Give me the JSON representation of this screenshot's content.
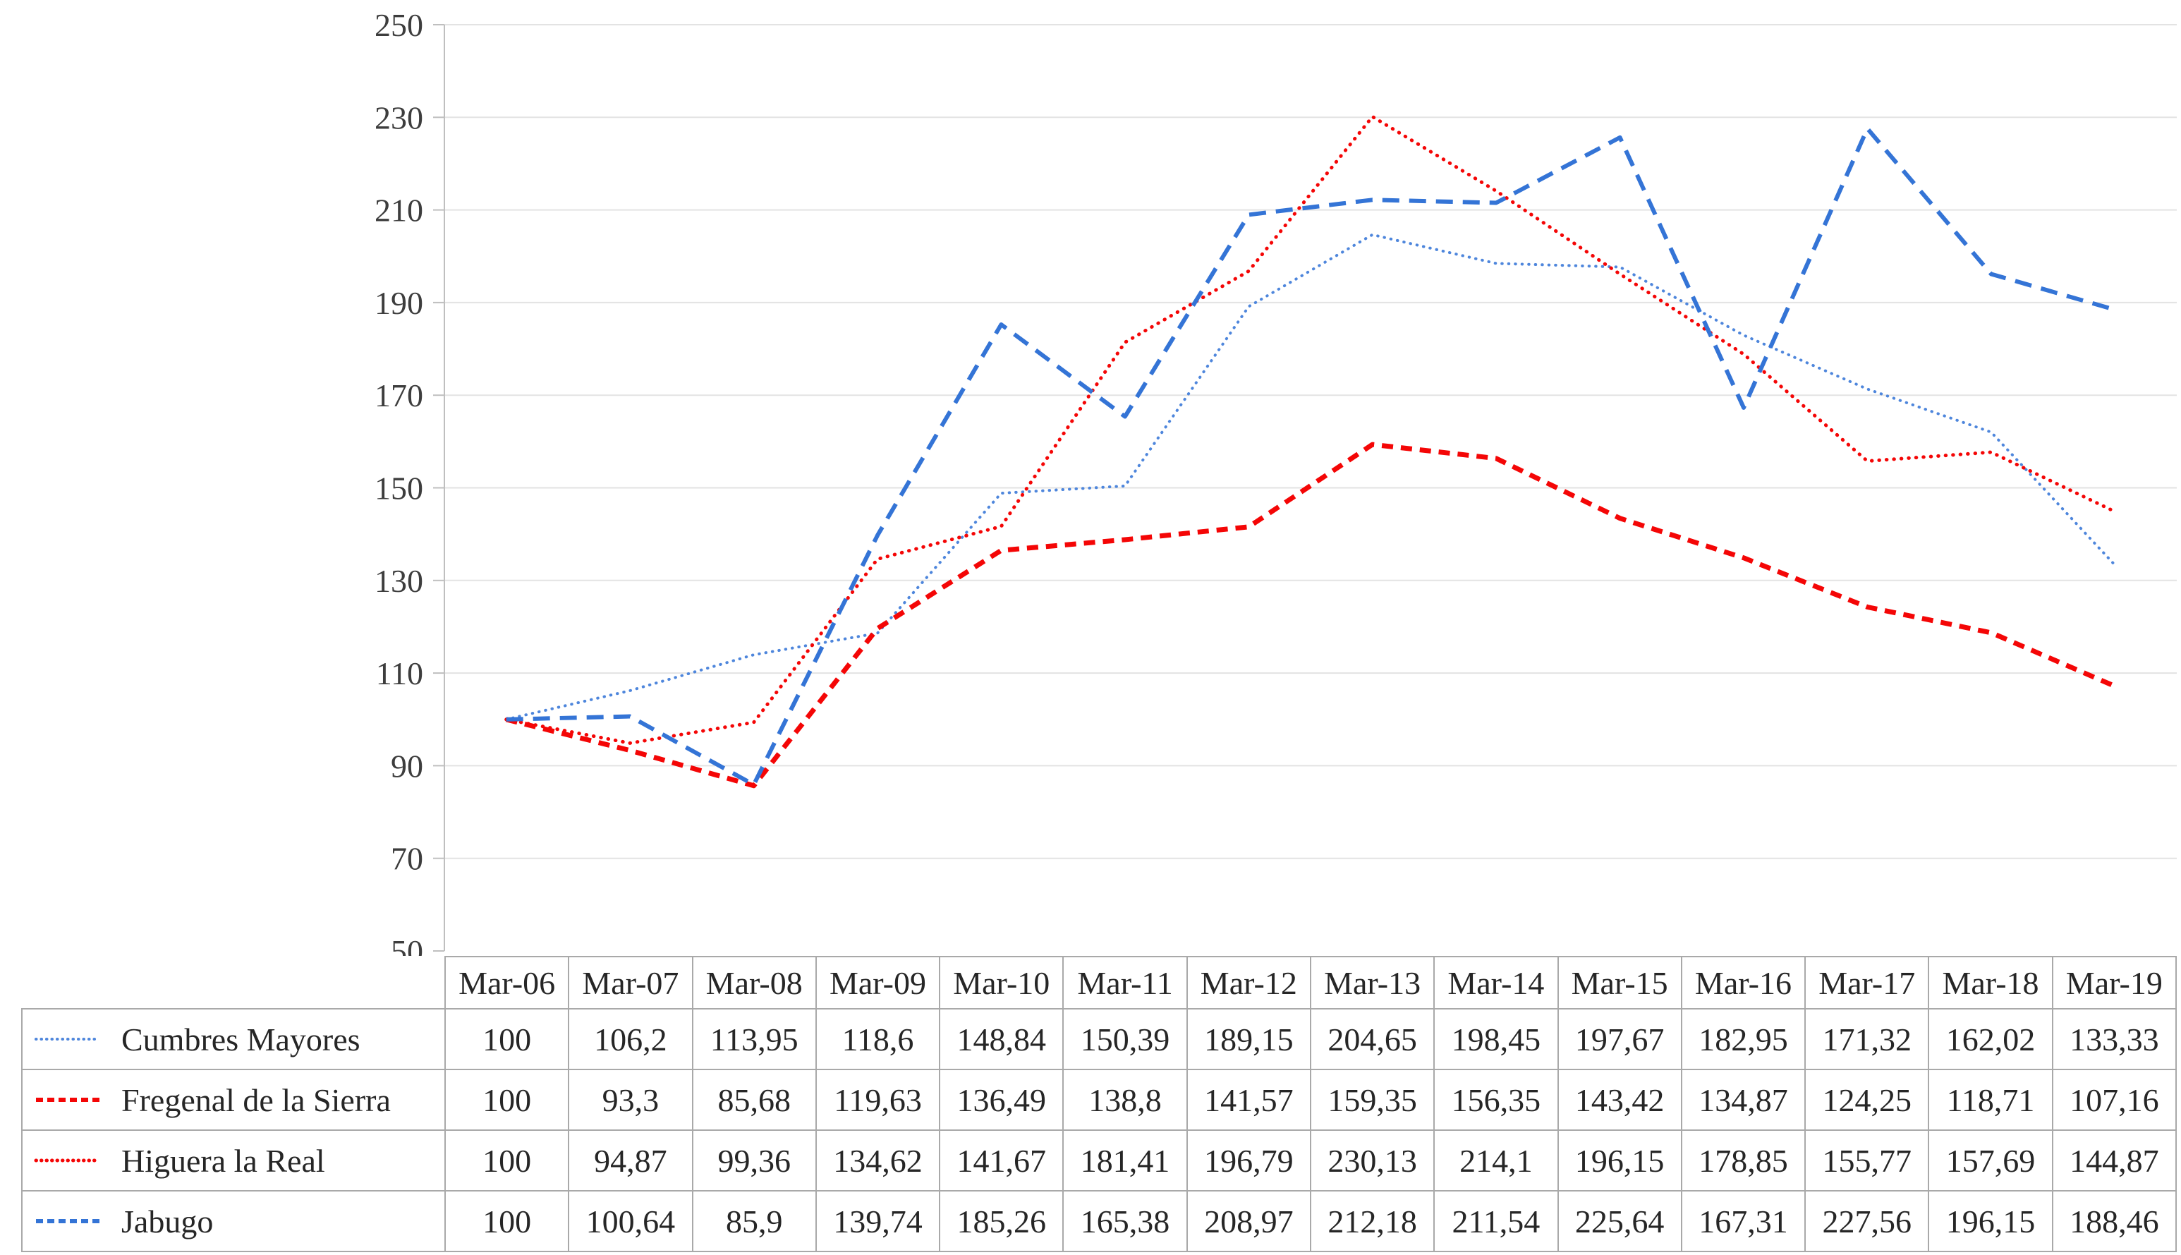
{
  "chart_data": {
    "type": "line",
    "title": "",
    "xlabel": "",
    "ylabel": "",
    "ylim": [
      50,
      250
    ],
    "ytick_step": 20,
    "y_tick_labels": [
      "250",
      "230",
      "210",
      "190",
      "170",
      "150",
      "130",
      "110",
      "90",
      "70",
      "50"
    ],
    "grid": "horizontal",
    "legend_position": "table-left-column",
    "axis_color": "#bfbfbf",
    "gridline_color": "#e3e3e3",
    "table_border_color": "#a9a9a9",
    "categories": [
      "Mar-06",
      "Mar-07",
      "Mar-08",
      "Mar-09",
      "Mar-10",
      "Mar-11",
      "Mar-12",
      "Mar-13",
      "Mar-14",
      "Mar-15",
      "Mar-16",
      "Mar-17",
      "Mar-18",
      "Mar-19"
    ],
    "series": [
      {
        "name": "Cumbres Mayores",
        "color": "#4e86dc",
        "line_style": "dotted",
        "stroke_width": 4,
        "dash_array": "0.5 9",
        "values": [
          100,
          106.2,
          113.95,
          118.6,
          148.84,
          150.39,
          189.15,
          204.65,
          198.45,
          197.67,
          182.95,
          171.32,
          162.02,
          133.33
        ],
        "display": [
          "100",
          "106,2",
          "113,95",
          "118,6",
          "148,84",
          "150,39",
          "189,15",
          "204,65",
          "198,45",
          "197,67",
          "182,95",
          "171,32",
          "162,02",
          "133,33"
        ]
      },
      {
        "name": "Fregenal de la Sierra",
        "color": "#f40606",
        "line_style": "dashed",
        "stroke_width": 7,
        "dash_array": "16 11",
        "values": [
          100,
          93.3,
          85.68,
          119.63,
          136.49,
          138.8,
          141.57,
          159.35,
          156.35,
          143.42,
          134.87,
          124.25,
          118.71,
          107.16
        ],
        "display": [
          "100",
          "93,3",
          "85,68",
          "119,63",
          "136,49",
          "138,8",
          "141,57",
          "159,35",
          "156,35",
          "143,42",
          "134,87",
          "124,25",
          "118,71",
          "107,16"
        ]
      },
      {
        "name": "Higuera la Real",
        "color": "#f40606",
        "line_style": "dotted",
        "stroke_width": 5,
        "dash_array": "0.5 10",
        "values": [
          100,
          94.87,
          99.36,
          134.62,
          141.67,
          181.41,
          196.79,
          230.13,
          214.1,
          196.15,
          178.85,
          155.77,
          157.69,
          144.87
        ],
        "display": [
          "100",
          "94,87",
          "99,36",
          "134,62",
          "141,67",
          "181,41",
          "196,79",
          "230,13",
          "214,1",
          "196,15",
          "178,85",
          "155,77",
          "157,69",
          "144,87"
        ]
      },
      {
        "name": "Jabugo",
        "color": "#3474d6",
        "line_style": "dashed",
        "stroke_width": 6,
        "dash_array": "24 14",
        "values": [
          100,
          100.64,
          85.9,
          139.74,
          185.26,
          165.38,
          208.97,
          212.18,
          211.54,
          225.64,
          167.31,
          227.56,
          196.15,
          188.46
        ],
        "display": [
          "100",
          "100,64",
          "85,9",
          "139,74",
          "185,26",
          "165,38",
          "208,97",
          "212,18",
          "211,54",
          "225,64",
          "167,31",
          "227,56",
          "196,15",
          "188,46"
        ]
      }
    ]
  }
}
